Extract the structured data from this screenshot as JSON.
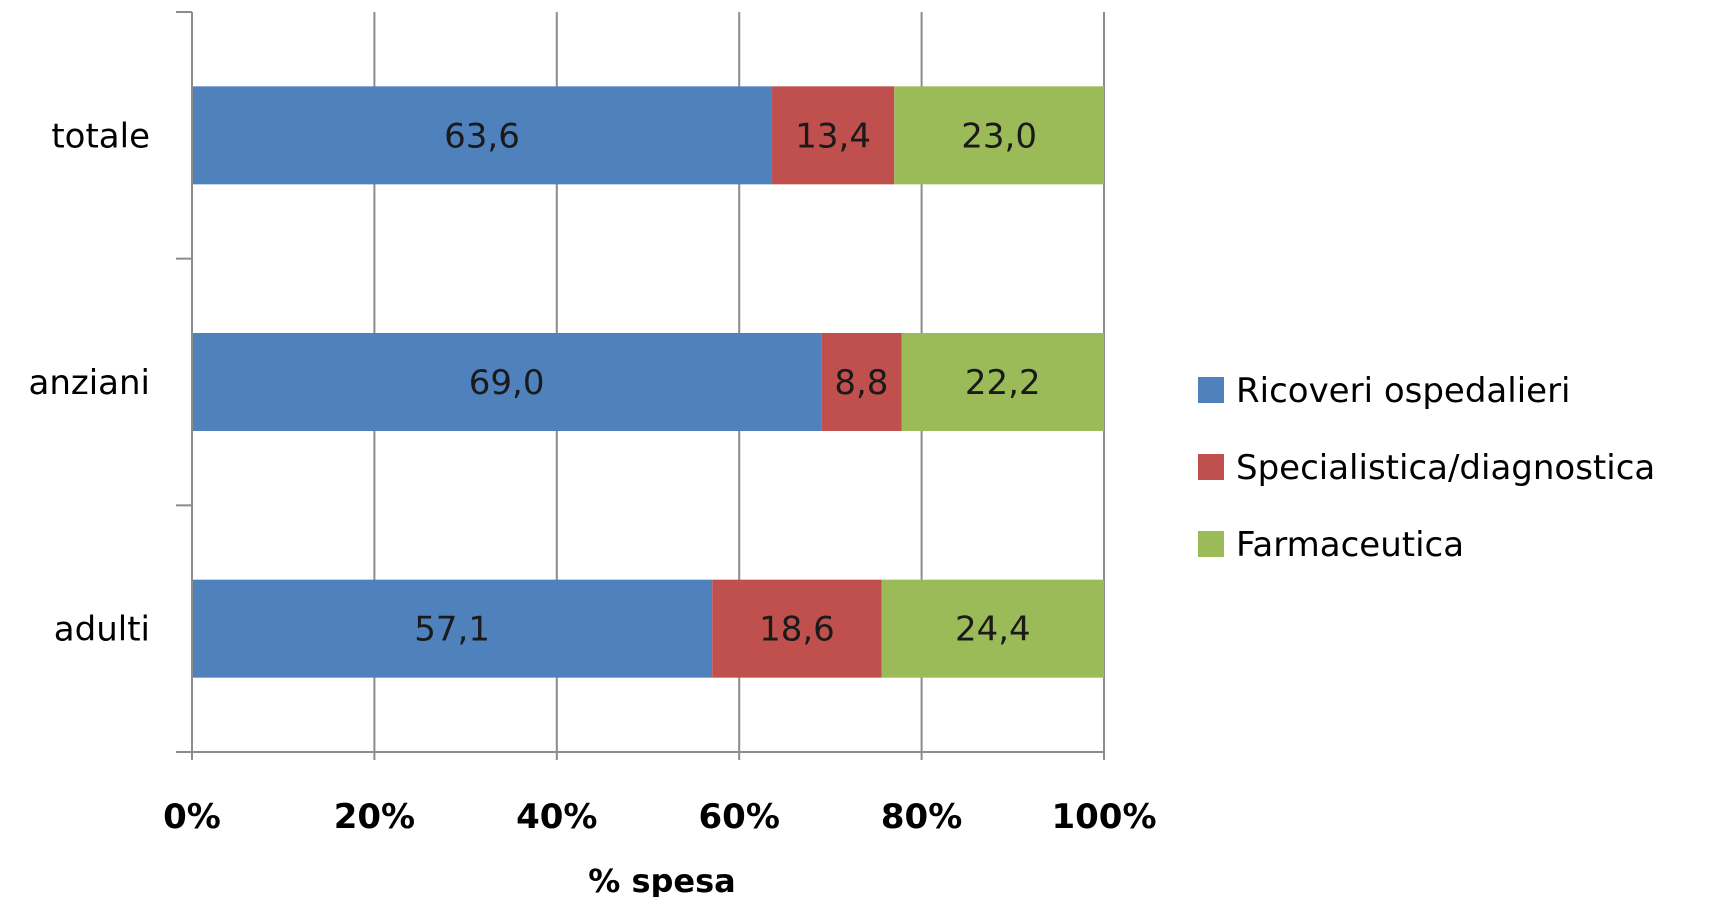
{
  "chart_data": {
    "type": "bar",
    "orientation": "horizontal",
    "stacked": "percent",
    "categories": [
      "totale",
      "anziani",
      "adulti"
    ],
    "series": [
      {
        "name": "Ricoveri ospedalieri",
        "color": "#4f81bd",
        "values": [
          63.6,
          69.0,
          57.1
        ],
        "labels": [
          "63,6",
          "69,0",
          "57,1"
        ]
      },
      {
        "name": "Specialistica/diagnostica",
        "color": "#c0504d",
        "values": [
          13.4,
          8.8,
          18.6
        ],
        "labels": [
          "13,4",
          "8,8",
          "18,6"
        ]
      },
      {
        "name": "Farmaceutica",
        "color": "#9bbb59",
        "values": [
          23.0,
          22.2,
          24.4
        ],
        "labels": [
          "23,0",
          "22,2",
          "24,4"
        ]
      }
    ],
    "xlabel": "% spesa",
    "ylabel": "",
    "title": "",
    "xlim": [
      0,
      100
    ],
    "xticks": [
      "0%",
      "20%",
      "40%",
      "60%",
      "80%",
      "100%"
    ],
    "grid": "vertical",
    "legend": "right"
  }
}
